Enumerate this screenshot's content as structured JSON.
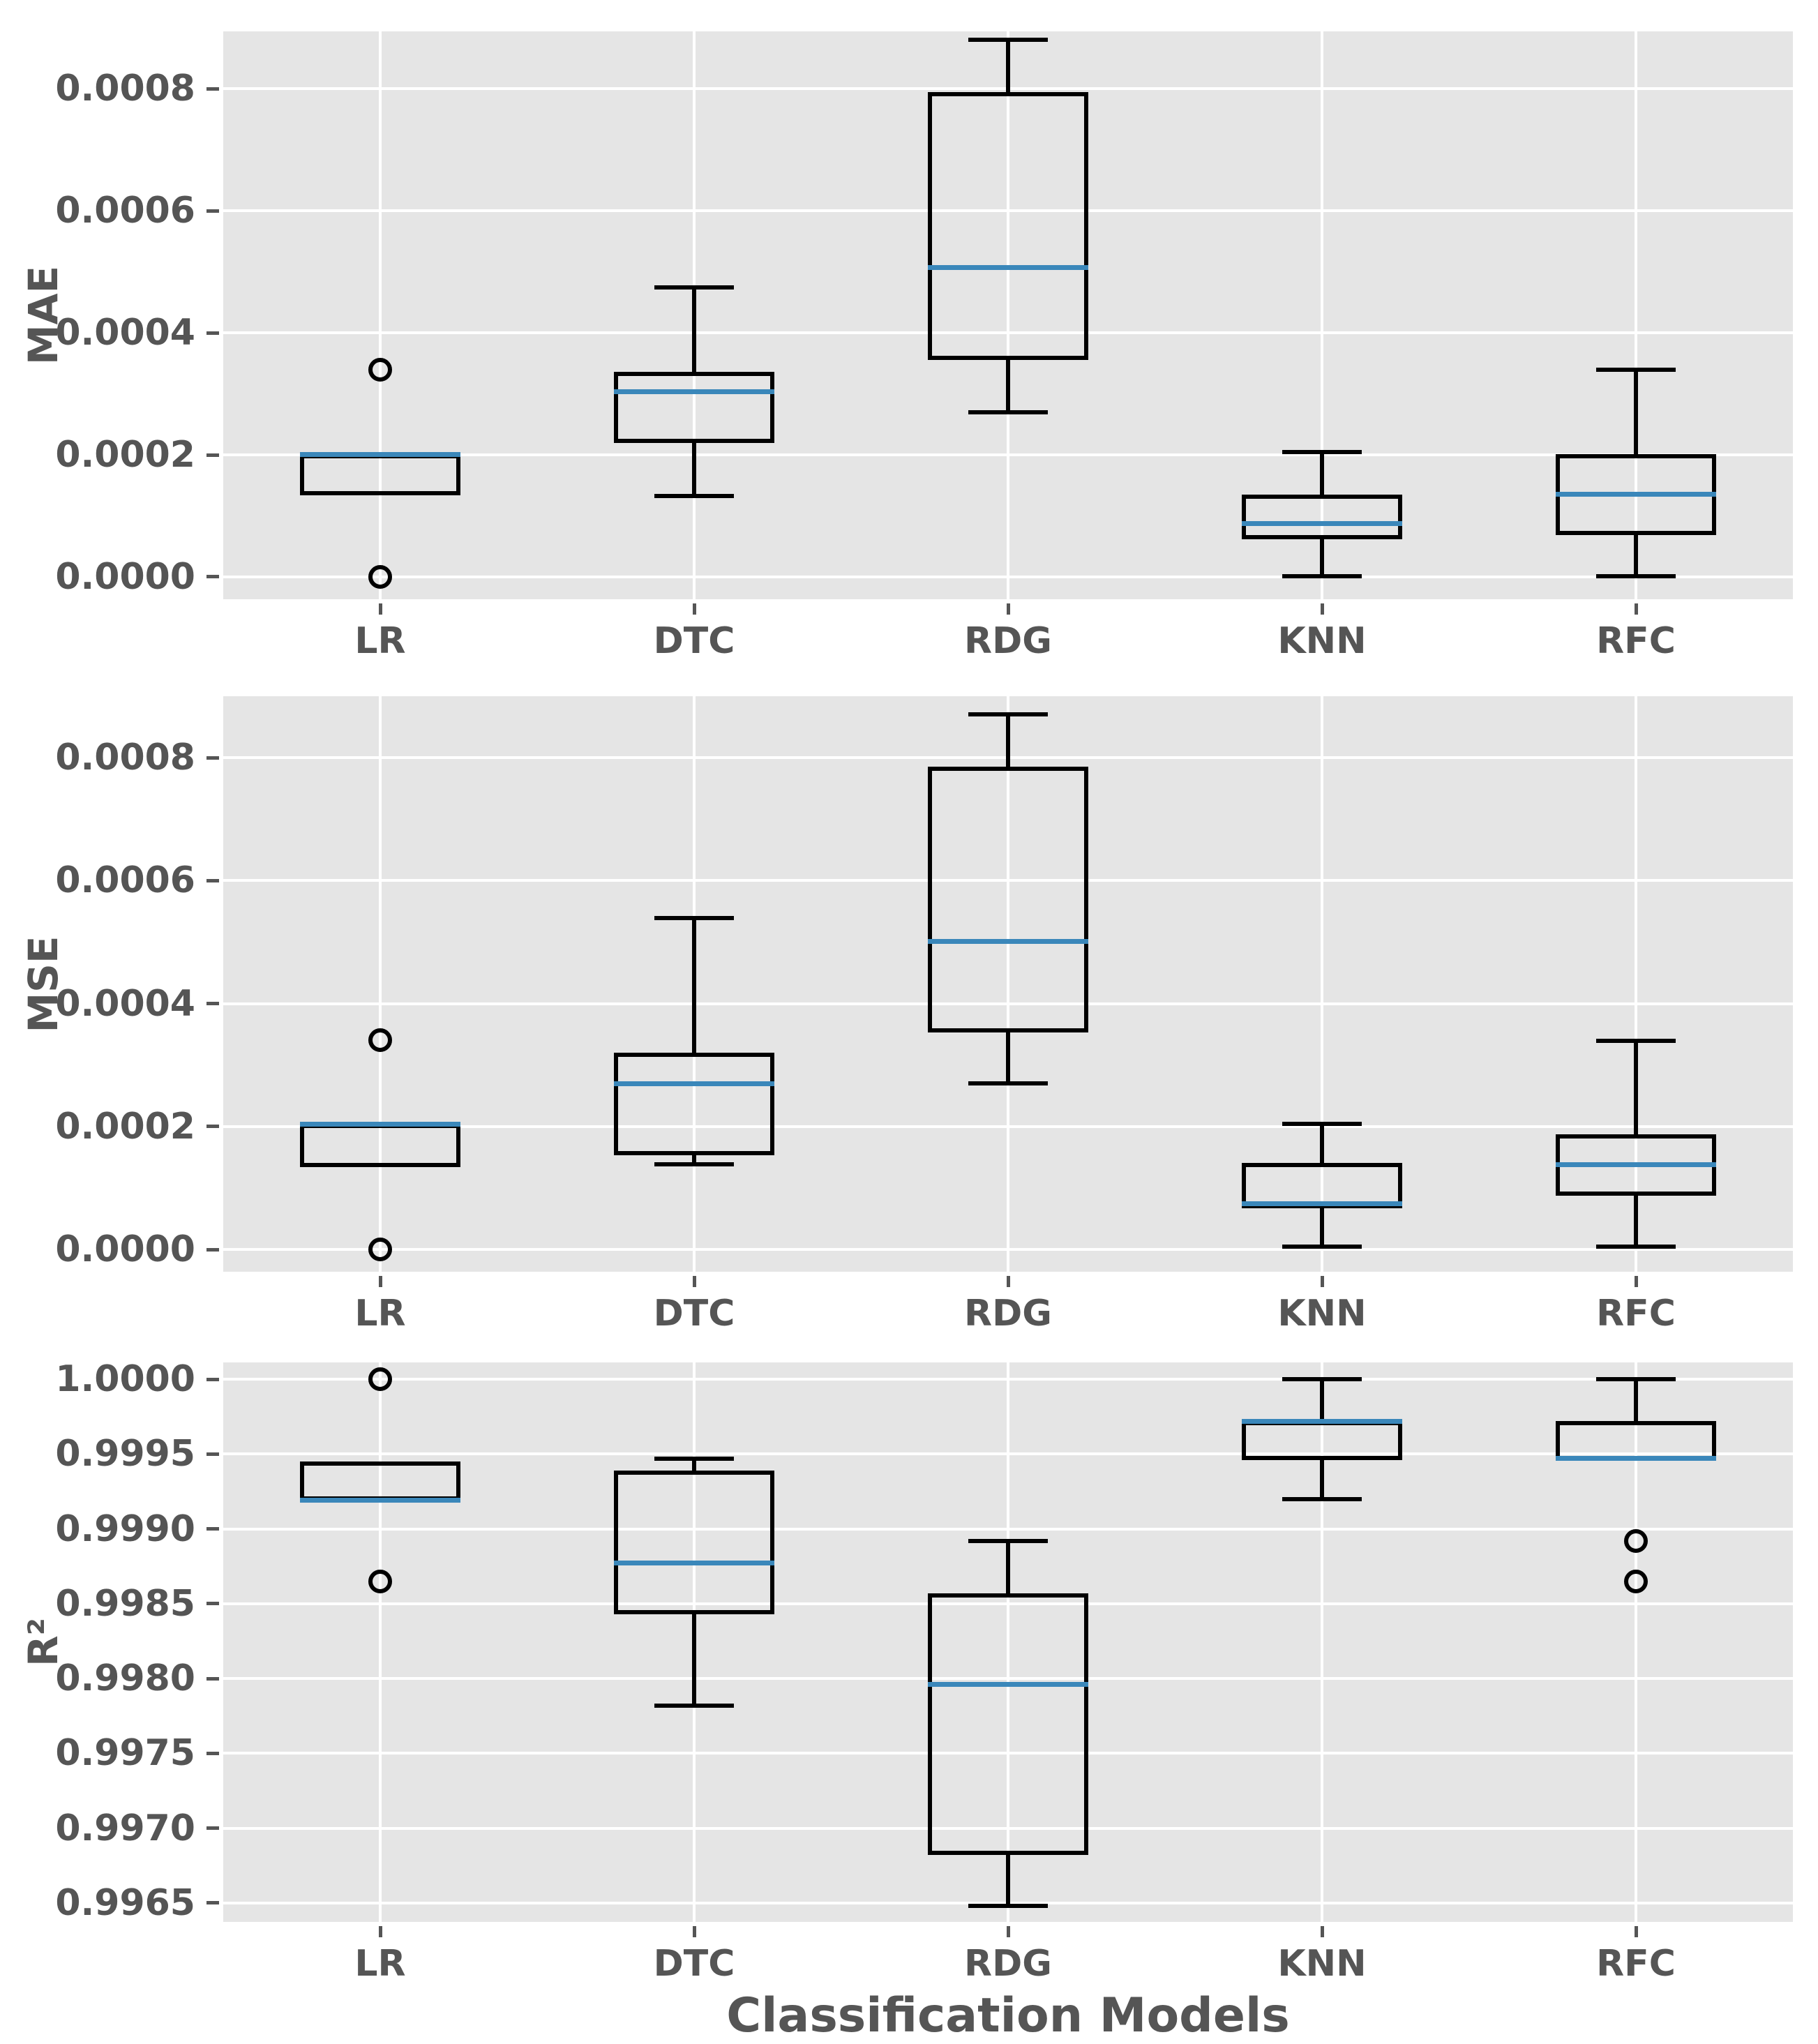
{
  "figure": {
    "xlabel": "Classification Models",
    "style": {
      "panel_background": "#e5e5e5",
      "grid_color": "#ffffff",
      "box_line_color": "#000000",
      "median_color": "#3a87ba",
      "text_color": "#555555",
      "tick_color": "#555555",
      "figure_background": "#ffffff"
    }
  },
  "chart_data": [
    {
      "type": "boxplot",
      "ylabel": "MAE",
      "categories": [
        "LR",
        "DTC",
        "RDG",
        "KNN",
        "RFC"
      ],
      "ylim": [
        -3.66e-05,
        0.000894
      ],
      "yticks": [
        0.0,
        0.0002,
        0.0004,
        0.0006,
        0.0008
      ],
      "ytick_labels": [
        "0.0000",
        "0.0002",
        "0.0004",
        "0.0006",
        "0.0008"
      ],
      "grid": true,
      "legend": false,
      "boxes": [
        {
          "category": "LR",
          "whislo": 0.000134,
          "q1": 0.000134,
          "med": 0.000201,
          "q3": 0.000201,
          "whishi": 0.000201,
          "outliers": [
            0.00034,
            0.0
          ]
        },
        {
          "category": "DTC",
          "whislo": 0.000133,
          "q1": 0.00022,
          "med": 0.000303,
          "q3": 0.000336,
          "whishi": 0.000474,
          "outliers": []
        },
        {
          "category": "RDG",
          "whislo": 0.00027,
          "q1": 0.000355,
          "med": 0.000507,
          "q3": 0.000795,
          "whishi": 0.00088,
          "outliers": []
        },
        {
          "category": "KNN",
          "whislo": 1e-06,
          "q1": 6.2e-05,
          "med": 8.7e-05,
          "q3": 0.000135,
          "whishi": 0.000205,
          "outliers": []
        },
        {
          "category": "RFC",
          "whislo": 1e-06,
          "q1": 6.9e-05,
          "med": 0.000135,
          "q3": 0.000201,
          "whishi": 0.00034,
          "outliers": []
        }
      ]
    },
    {
      "type": "boxplot",
      "ylabel": "MSE",
      "categories": [
        "LR",
        "DTC",
        "RDG",
        "KNN",
        "RFC"
      ],
      "ylim": [
        -3.63e-05,
        0.0009
      ],
      "yticks": [
        0.0,
        0.0002,
        0.0004,
        0.0006,
        0.0008
      ],
      "ytick_labels": [
        "0.0000",
        "0.0002",
        "0.0004",
        "0.0006",
        "0.0008"
      ],
      "grid": true,
      "legend": false,
      "boxes": [
        {
          "category": "LR",
          "whislo": 0.000134,
          "q1": 0.000134,
          "med": 0.000204,
          "q3": 0.000204,
          "whishi": 0.000204,
          "outliers": [
            0.00034,
            0.0
          ]
        },
        {
          "category": "DTC",
          "whislo": 0.000139,
          "q1": 0.000153,
          "med": 0.00027,
          "q3": 0.00032,
          "whishi": 0.000539,
          "outliers": []
        },
        {
          "category": "RDG",
          "whislo": 0.00027,
          "q1": 0.000353,
          "med": 0.000501,
          "q3": 0.000785,
          "whishi": 0.00087,
          "outliers": []
        },
        {
          "category": "KNN",
          "whislo": 5e-06,
          "q1": 6.7e-05,
          "med": 7.4e-05,
          "q3": 0.000141,
          "whishi": 0.000204,
          "outliers": []
        },
        {
          "category": "RFC",
          "whislo": 5e-06,
          "q1": 8.7e-05,
          "med": 0.000138,
          "q3": 0.000187,
          "whishi": 0.000339,
          "outliers": []
        }
      ]
    },
    {
      "type": "boxplot",
      "ylabel": "R²",
      "xlabel": "Classification Models",
      "categories": [
        "LR",
        "DTC",
        "RDG",
        "KNN",
        "RFC"
      ],
      "ylim": [
        0.996374,
        1.000112
      ],
      "yticks": [
        0.9965,
        0.997,
        0.9975,
        0.998,
        0.9985,
        0.999,
        0.9995,
        1.0
      ],
      "ytick_labels": [
        "0.9965",
        "0.9970",
        "0.9975",
        "0.9980",
        "0.9985",
        "0.9990",
        "0.9995",
        "1.0000"
      ],
      "grid": true,
      "legend": false,
      "boxes": [
        {
          "category": "LR",
          "whislo": 0.99919,
          "q1": 0.99919,
          "med": 0.99919,
          "q3": 0.99945,
          "whishi": 0.99945,
          "outliers": [
            1.0,
            0.99865
          ]
        },
        {
          "category": "DTC",
          "whislo": 0.99782,
          "q1": 0.99843,
          "med": 0.99877,
          "q3": 0.99939,
          "whishi": 0.99947,
          "outliers": []
        },
        {
          "category": "RDG",
          "whislo": 0.99648,
          "q1": 0.99682,
          "med": 0.99796,
          "q3": 0.99857,
          "whishi": 0.99892,
          "outliers": []
        },
        {
          "category": "KNN",
          "whislo": 0.9992,
          "q1": 0.99946,
          "med": 0.99972,
          "q3": 0.99972,
          "whishi": 1.0,
          "outliers": []
        },
        {
          "category": "RFC",
          "whislo": 0.99946,
          "q1": 0.99946,
          "med": 0.99947,
          "q3": 0.99972,
          "whishi": 1.0,
          "outliers": [
            0.99892,
            0.99865
          ]
        }
      ]
    }
  ]
}
